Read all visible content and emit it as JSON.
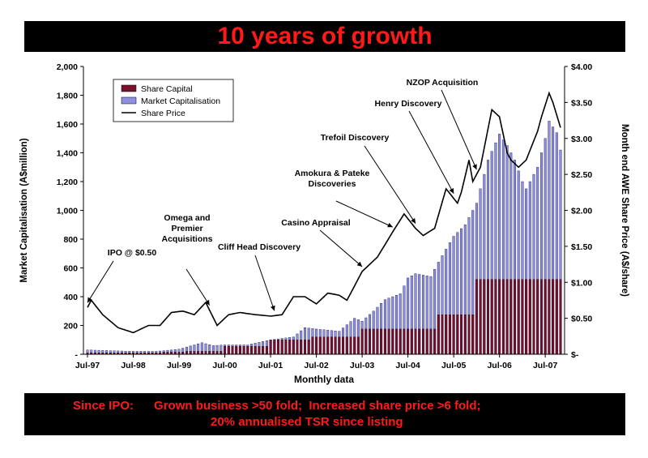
{
  "title": "10 years of growth",
  "footer": {
    "line1": "Since IPO:      Grown business >50 fold;  Increased share price >6 fold;",
    "line2": "20% annualised TSR since listing"
  },
  "colors": {
    "accent": "#ff1a1a",
    "banner": "#000000",
    "share_capital": "#7a1030",
    "market_cap": "#8f8fe0",
    "share_price": "#000000"
  },
  "chart_data": {
    "type": "bar",
    "xlabel": "Monthly data",
    "ylabel": "Market Capitalisation (A$million)",
    "y2label": "Month end AWE Share Price (A$/share)",
    "ylim": [
      0,
      2000
    ],
    "y2lim": [
      0,
      4
    ],
    "yticks": [
      "-",
      "200",
      "400",
      "600",
      "800",
      "1,000",
      "1,200",
      "1,400",
      "1,600",
      "1,800",
      "2,000"
    ],
    "y2ticks": [
      "$-",
      "$0.50",
      "$1.00",
      "$1.50",
      "$2.00",
      "$2.50",
      "$3.00",
      "$3.50",
      "$4.00"
    ],
    "xticks": [
      "Jul-97",
      "Jul-98",
      "Jul-99",
      "Jul-00",
      "Jul-01",
      "Jul-02",
      "Jul-03",
      "Jul-04",
      "Jul-05",
      "Jul-06",
      "Jul-07"
    ],
    "legend": {
      "position": "top-left",
      "entries": [
        "Share Capital",
        "Market Capitalisation",
        "Share Price"
      ]
    },
    "annotations": [
      {
        "text": "IPO @ $0.50",
        "date": "Jul-97"
      },
      {
        "text": "Omega and Premier Acquisitions",
        "date": "Mar-00"
      },
      {
        "text": "Cliff Head Discovery",
        "date": "Aug-01"
      },
      {
        "text": "Casino Appraisal",
        "date": "Jul-03"
      },
      {
        "text": "Amokura & Pateke Discoveries",
        "date": "Mar-04"
      },
      {
        "text": "Trefoil Discovery",
        "date": "Sep-04"
      },
      {
        "text": "Henry Discovery",
        "date": "Jul-05"
      },
      {
        "text": "NZOP Acquisition",
        "date": "Jan-06"
      }
    ],
    "series": [
      {
        "name": "Share Capital",
        "type": "bar",
        "axis": "left",
        "steps": [
          [
            0,
            10
          ],
          [
            20,
            15
          ],
          [
            26,
            20
          ],
          [
            36,
            55
          ],
          [
            48,
            100
          ],
          [
            59,
            120
          ],
          [
            72,
            175
          ],
          [
            84,
            175
          ],
          [
            92,
            275
          ],
          [
            102,
            520
          ],
          [
            121,
            520
          ]
        ]
      },
      {
        "name": "Market Capitalisation",
        "type": "bar",
        "axis": "left",
        "anchors": [
          [
            0,
            30
          ],
          [
            6,
            25
          ],
          [
            12,
            20
          ],
          [
            18,
            20
          ],
          [
            24,
            35
          ],
          [
            26,
            50
          ],
          [
            30,
            80
          ],
          [
            33,
            60
          ],
          [
            36,
            65
          ],
          [
            42,
            65
          ],
          [
            48,
            100
          ],
          [
            54,
            120
          ],
          [
            57,
            185
          ],
          [
            60,
            175
          ],
          [
            66,
            160
          ],
          [
            70,
            250
          ],
          [
            72,
            230
          ],
          [
            75,
            300
          ],
          [
            78,
            380
          ],
          [
            82,
            420
          ],
          [
            84,
            530
          ],
          [
            86,
            560
          ],
          [
            90,
            540
          ],
          [
            92,
            640
          ],
          [
            96,
            820
          ],
          [
            99,
            900
          ],
          [
            102,
            1050
          ],
          [
            105,
            1350
          ],
          [
            108,
            1530
          ],
          [
            110,
            1450
          ],
          [
            112,
            1350
          ],
          [
            114,
            1200
          ],
          [
            115,
            1150
          ],
          [
            118,
            1300
          ],
          [
            120,
            1500
          ],
          [
            121,
            1620
          ],
          [
            123,
            1540
          ],
          [
            124,
            1420
          ]
        ]
      },
      {
        "name": "Share Price",
        "type": "line",
        "axis": "right",
        "anchors": [
          [
            0,
            0.65
          ],
          [
            1,
            0.75
          ],
          [
            4,
            0.55
          ],
          [
            8,
            0.37
          ],
          [
            12,
            0.3
          ],
          [
            16,
            0.4
          ],
          [
            19,
            0.4
          ],
          [
            22,
            0.58
          ],
          [
            25,
            0.6
          ],
          [
            28,
            0.55
          ],
          [
            31,
            0.72
          ],
          [
            34,
            0.4
          ],
          [
            37,
            0.55
          ],
          [
            40,
            0.58
          ],
          [
            44,
            0.55
          ],
          [
            48,
            0.53
          ],
          [
            51,
            0.55
          ],
          [
            54,
            0.8
          ],
          [
            57,
            0.8
          ],
          [
            60,
            0.7
          ],
          [
            63,
            0.85
          ],
          [
            66,
            0.82
          ],
          [
            68,
            0.75
          ],
          [
            72,
            1.15
          ],
          [
            76,
            1.35
          ],
          [
            80,
            1.7
          ],
          [
            83,
            1.95
          ],
          [
            86,
            1.75
          ],
          [
            88,
            1.65
          ],
          [
            91,
            1.75
          ],
          [
            94,
            2.3
          ],
          [
            97,
            2.1
          ],
          [
            98,
            2.25
          ],
          [
            100,
            2.7
          ],
          [
            101,
            2.4
          ],
          [
            103,
            2.6
          ],
          [
            106,
            3.4
          ],
          [
            108,
            3.3
          ],
          [
            110,
            2.8
          ],
          [
            111,
            2.7
          ],
          [
            113,
            2.6
          ],
          [
            115,
            2.7
          ],
          [
            118,
            3.1
          ],
          [
            119,
            3.3
          ],
          [
            121,
            3.63
          ],
          [
            122,
            3.5
          ],
          [
            124,
            3.15
          ]
        ]
      }
    ]
  }
}
